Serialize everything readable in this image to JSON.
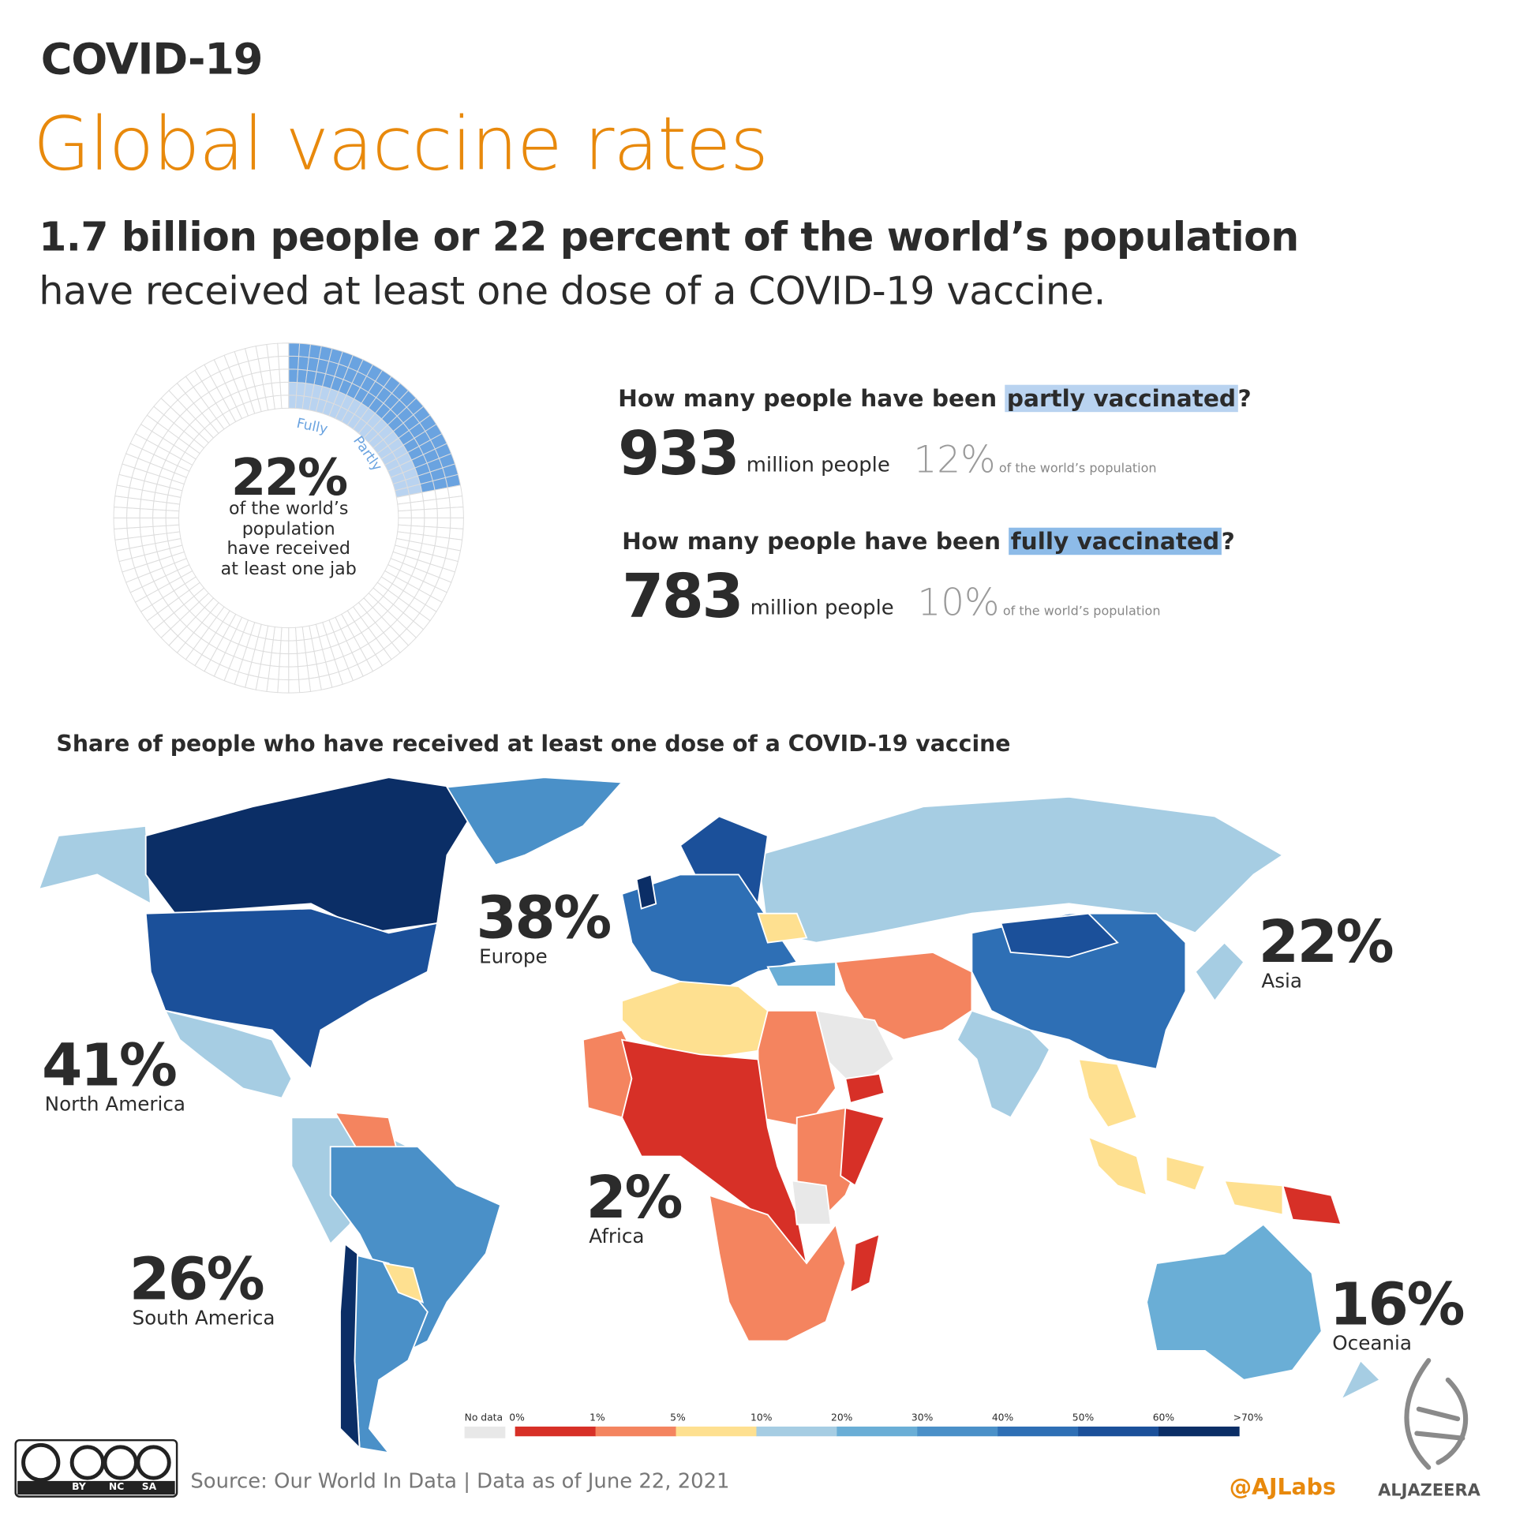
{
  "header": {
    "kicker": "COVID-19",
    "title": "Global vaccine rates",
    "headline": "1.7 billion people or 22 percent of the world’s population",
    "subline": "have received at least one dose of a COVID-19 vaccine."
  },
  "donut": {
    "value": "22%",
    "lines": [
      "of the world’s",
      "population",
      "have received",
      "at least one jab"
    ],
    "fully_label": "Fully",
    "partly_label": "Partly",
    "fully_color": "#6aa3e0",
    "partly_color": "#b9d3f0"
  },
  "stats": [
    {
      "q_prefix": "How many people have been ",
      "q_highlight": "partly vaccinated",
      "q_suffix": "?",
      "count": "933",
      "unit": "million people",
      "pct": "12%",
      "pct_note": "of the world’s population"
    },
    {
      "q_prefix": "How many people have been ",
      "q_highlight": "fully vaccinated",
      "q_suffix": "?",
      "count": "783",
      "unit": "million people",
      "pct": "10%",
      "pct_note": "of the world’s population"
    }
  ],
  "map": {
    "title": "Share of people who have received at least one dose of a COVID-19 vaccine",
    "regions": [
      {
        "value": "38%",
        "name": "Europe"
      },
      {
        "value": "22%",
        "name": "Asia"
      },
      {
        "value": "41%",
        "name": "North America"
      },
      {
        "value": "26%",
        "name": "South America"
      },
      {
        "value": "2%",
        "name": "Africa"
      },
      {
        "value": "16%",
        "name": "Oceania"
      }
    ],
    "legend": {
      "no_data": "No data",
      "no_data_color": "#e8e8e8",
      "ticks": [
        "0%",
        "1%",
        "5%",
        "10%",
        "20%",
        "30%",
        "40%",
        "50%",
        "60%",
        ">70%"
      ],
      "colors": [
        "#d73027",
        "#f4845f",
        "#fee090",
        "#a6cde3",
        "#6aaed6",
        "#4a90c8",
        "#2e6fb5",
        "#1b509a",
        "#0b2e66"
      ]
    }
  },
  "footer": {
    "license": [
      "BY",
      "NC",
      "SA"
    ],
    "source": "Source: Our World In Data | Data as of June 22, 2021",
    "handle": "@AJLabs",
    "brand": "ALJAZEERA"
  }
}
